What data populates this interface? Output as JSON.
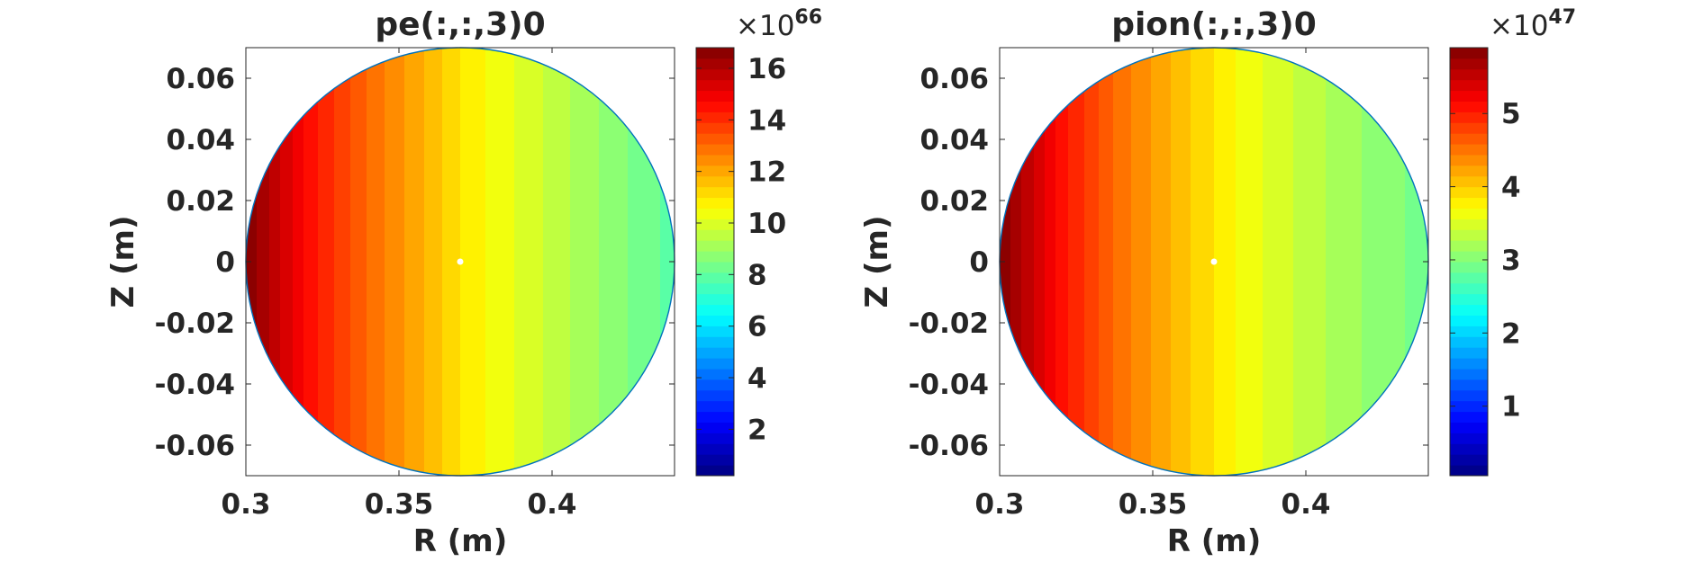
{
  "figure": {
    "background": "#ffffff",
    "text_color": "#262626",
    "circle_edge_color": "#0072bd",
    "center_marker_color": "#ffffff"
  },
  "chart_data": [
    {
      "type": "contourf",
      "title": "pe(:,:,3)0",
      "xlabel": "R (m)",
      "ylabel": "Z (m)",
      "xlim": [
        0.3,
        0.44
      ],
      "ylim": [
        -0.07,
        0.07
      ],
      "xticks": [
        0.3,
        0.35,
        0.4
      ],
      "xtick_labels": [
        "0.3",
        "0.35",
        "0.4"
      ],
      "yticks": [
        0.06,
        0.04,
        0.02,
        0,
        -0.02,
        -0.04,
        -0.06
      ],
      "ytick_labels": [
        "0.06",
        "0.04",
        "0.02",
        "0",
        "-0.02",
        "-0.04",
        "-0.06"
      ],
      "colormap": "jet",
      "colorbar": {
        "clim": [
          0.2,
          16.8
        ],
        "ticks": [
          2,
          4,
          6,
          8,
          10,
          12,
          14,
          16
        ],
        "tick_labels": [
          "2",
          "4",
          "6",
          "8",
          "10",
          "12",
          "14",
          "16"
        ],
        "exponent_base": "×10",
        "exponent": "66"
      },
      "region": {
        "shape": "circle",
        "center": [
          0.37,
          0.0
        ],
        "radius": 0.07
      },
      "field": {
        "varies_along": "R",
        "R": [
          0.3,
          0.32,
          0.34,
          0.36,
          0.37,
          0.38,
          0.4,
          0.42,
          0.44
        ],
        "value": [
          16.8,
          14.6,
          13.0,
          11.7,
          11.0,
          10.5,
          9.6,
          8.7,
          7.9
        ]
      },
      "levels": 40,
      "marker": {
        "R": 0.37,
        "Z": 0.0
      }
    },
    {
      "type": "contourf",
      "title": "pion(:,:,3)0",
      "xlabel": "R (m)",
      "ylabel": "Z (m)",
      "xlim": [
        0.3,
        0.44
      ],
      "ylim": [
        -0.07,
        0.07
      ],
      "xticks": [
        0.3,
        0.35,
        0.4
      ],
      "xtick_labels": [
        "0.3",
        "0.35",
        "0.4"
      ],
      "yticks": [
        0.06,
        0.04,
        0.02,
        0,
        -0.02,
        -0.04,
        -0.06
      ],
      "ytick_labels": [
        "0.06",
        "0.04",
        "0.02",
        "0",
        "-0.02",
        "-0.04",
        "-0.06"
      ],
      "colormap": "jet",
      "colorbar": {
        "clim": [
          0.05,
          5.9
        ],
        "ticks": [
          1,
          2,
          3,
          4,
          5
        ],
        "tick_labels": [
          "1",
          "2",
          "3",
          "4",
          "5"
        ],
        "exponent_base": "×10",
        "exponent": "47"
      },
      "region": {
        "shape": "circle",
        "center": [
          0.37,
          0.0
        ],
        "radius": 0.07
      },
      "field": {
        "varies_along": "R",
        "R": [
          0.3,
          0.32,
          0.34,
          0.36,
          0.37,
          0.38,
          0.4,
          0.42,
          0.44
        ],
        "value": [
          5.9,
          5.1,
          4.5,
          4.05,
          3.85,
          3.65,
          3.35,
          3.1,
          2.9
        ]
      },
      "levels": 40,
      "marker": {
        "R": 0.37,
        "Z": 0.0
      }
    }
  ]
}
